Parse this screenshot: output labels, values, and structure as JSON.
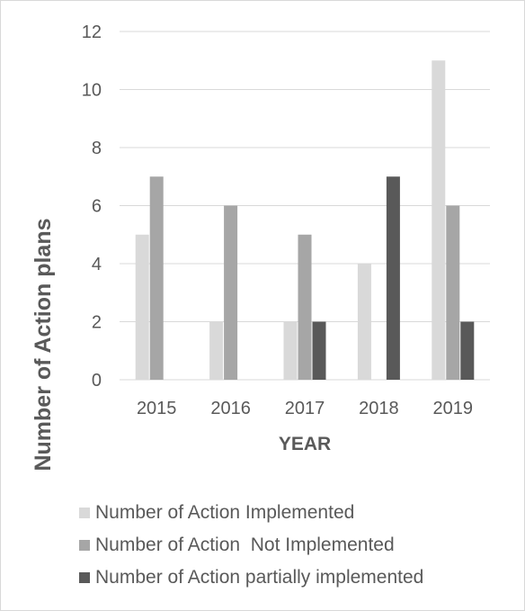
{
  "chart_data": {
    "type": "bar",
    "title": "",
    "xlabel": "YEAR",
    "ylabel": "Number of Action  plans",
    "categories": [
      "2015",
      "2016",
      "2017",
      "2018",
      "2019"
    ],
    "ylim": [
      0,
      12
    ],
    "yticks": [
      "0",
      "2",
      "4",
      "6",
      "8",
      "10",
      "12"
    ],
    "grid": true,
    "legend_position": "bottom",
    "series": [
      {
        "name": "Number of Action Implemented",
        "color": "#d9d9d9",
        "values": [
          5,
          2,
          2,
          4,
          11
        ]
      },
      {
        "name": "Number of Action  Not Implemented",
        "color": "#a6a6a6",
        "values": [
          7,
          6,
          5,
          0,
          6
        ]
      },
      {
        "name": "Number of Action partially implemented",
        "color": "#595959",
        "values": [
          0,
          0,
          2,
          7,
          2
        ]
      }
    ]
  }
}
